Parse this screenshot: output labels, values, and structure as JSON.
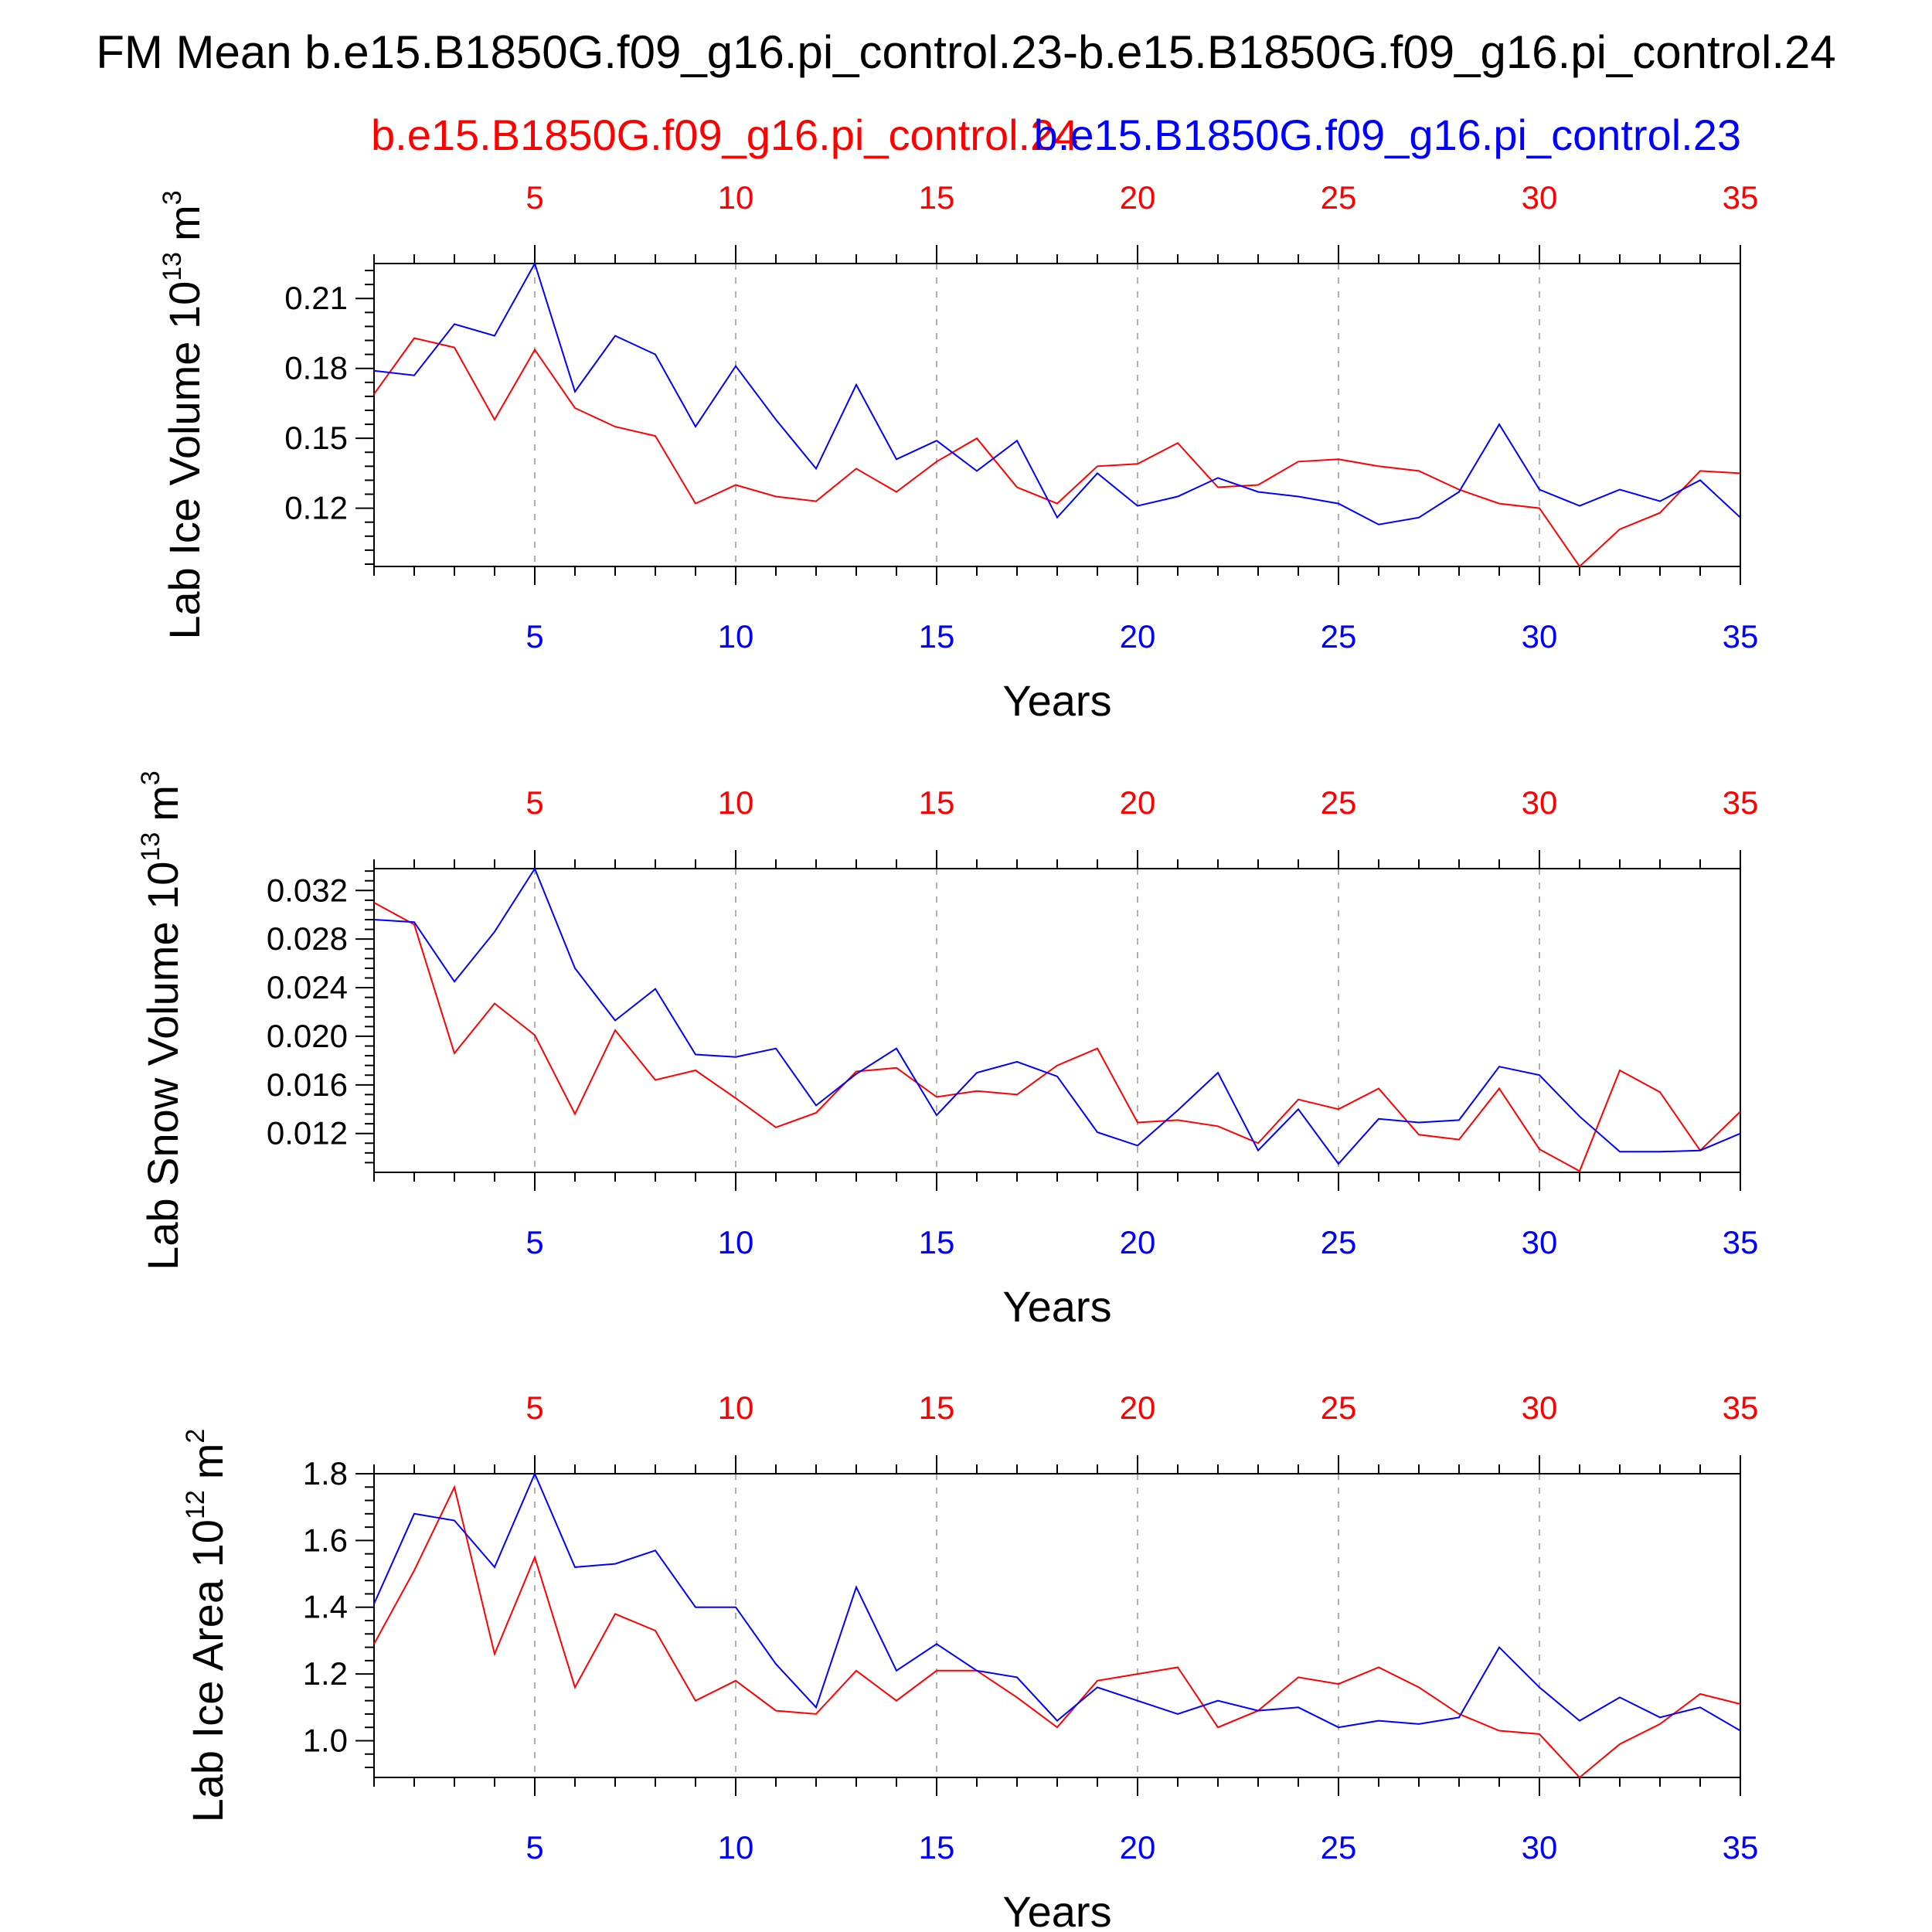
{
  "title": "FM Mean b.e15.B1850G.f09_g16.pi_control.23-b.e15.B1850G.f09_g16.pi_control.24",
  "legend": {
    "red_label": "b.e15.B1850G.f09_g16.pi_control.24",
    "blue_label": "b.e15.B1850G.f09_g16.pi_control.23"
  },
  "colors": {
    "red": "#ff0000",
    "blue": "#0000ff",
    "axis": "#000000",
    "grid": "#b0b0b0"
  },
  "chart_data": [
    {
      "type": "line",
      "ylabel_main": "Lab Ice Volume 10",
      "ylabel_exp": "13",
      "ylabel_unit": "m",
      "ylabel_unit_exp": "3",
      "xlabel": "Years",
      "xlim": [
        1,
        35
      ],
      "ylim": [
        0.095,
        0.225
      ],
      "yticks": [
        "0.12",
        "0.15",
        "0.18",
        "0.21"
      ],
      "ytick_values": [
        0.12,
        0.15,
        0.18,
        0.21
      ],
      "xticks": [
        "5",
        "10",
        "15",
        "20",
        "25",
        "30",
        "35"
      ],
      "xtick_values": [
        5,
        10,
        15,
        20,
        25,
        30,
        35
      ],
      "x": [
        1,
        2,
        3,
        4,
        5,
        6,
        7,
        8,
        9,
        10,
        11,
        12,
        13,
        14,
        15,
        16,
        17,
        18,
        19,
        20,
        21,
        22,
        23,
        24,
        25,
        26,
        27,
        28,
        29,
        30,
        31,
        32,
        33,
        34,
        35
      ],
      "series": [
        {
          "name": "b.e15.B1850G.f09_g16.pi_control.24",
          "color": "red",
          "values": [
            0.169,
            0.193,
            0.189,
            0.158,
            0.188,
            0.163,
            0.155,
            0.151,
            0.122,
            0.13,
            0.125,
            0.123,
            0.137,
            0.127,
            0.14,
            0.15,
            0.129,
            0.122,
            0.138,
            0.139,
            0.148,
            0.129,
            0.13,
            0.14,
            0.141,
            0.138,
            0.136,
            0.128,
            0.122,
            0.12,
            0.095,
            0.111,
            0.118,
            0.136,
            0.135
          ]
        },
        {
          "name": "b.e15.B1850G.f09_g16.pi_control.23",
          "color": "blue",
          "values": [
            0.179,
            0.177,
            0.199,
            0.194,
            0.225,
            0.17,
            0.194,
            0.186,
            0.155,
            0.181,
            0.158,
            0.137,
            0.173,
            0.141,
            0.149,
            0.136,
            0.149,
            0.116,
            0.135,
            0.121,
            0.125,
            0.133,
            0.127,
            0.125,
            0.122,
            0.113,
            0.116,
            0.127,
            0.156,
            0.128,
            0.121,
            0.128,
            0.123,
            0.132,
            0.116
          ]
        }
      ]
    },
    {
      "type": "line",
      "ylabel_main": "Lab Snow Volume 10",
      "ylabel_exp": "13",
      "ylabel_unit": "m",
      "ylabel_unit_exp": "3",
      "xlabel": "Years",
      "xlim": [
        1,
        35
      ],
      "ylim": [
        0.0088,
        0.0338
      ],
      "yticks": [
        "0.012",
        "0.016",
        "0.020",
        "0.024",
        "0.028",
        "0.032"
      ],
      "ytick_values": [
        0.012,
        0.016,
        0.02,
        0.024,
        0.028,
        0.032
      ],
      "xticks": [
        "5",
        "10",
        "15",
        "20",
        "25",
        "30",
        "35"
      ],
      "xtick_values": [
        5,
        10,
        15,
        20,
        25,
        30,
        35
      ],
      "x": [
        1,
        2,
        3,
        4,
        5,
        6,
        7,
        8,
        9,
        10,
        11,
        12,
        13,
        14,
        15,
        16,
        17,
        18,
        19,
        20,
        21,
        22,
        23,
        24,
        25,
        26,
        27,
        28,
        29,
        30,
        31,
        32,
        33,
        34,
        35
      ],
      "series": [
        {
          "name": "b.e15.B1850G.f09_g16.pi_control.24",
          "color": "red",
          "values": [
            0.031,
            0.0292,
            0.0186,
            0.0227,
            0.0201,
            0.0136,
            0.0205,
            0.0164,
            0.0172,
            0.0149,
            0.0125,
            0.0137,
            0.0171,
            0.0174,
            0.015,
            0.0155,
            0.0152,
            0.0176,
            0.019,
            0.0129,
            0.0131,
            0.0126,
            0.0112,
            0.0148,
            0.014,
            0.0157,
            0.0119,
            0.0115,
            0.0157,
            0.0107,
            0.0089,
            0.0172,
            0.0154,
            0.0106,
            0.0138
          ]
        },
        {
          "name": "b.e15.B1850G.f09_g16.pi_control.23",
          "color": "blue",
          "values": [
            0.0296,
            0.0294,
            0.0245,
            0.0286,
            0.0338,
            0.0256,
            0.0213,
            0.0239,
            0.0185,
            0.0183,
            0.019,
            0.0143,
            0.0169,
            0.019,
            0.0135,
            0.017,
            0.0179,
            0.0167,
            0.0121,
            0.011,
            0.0139,
            0.017,
            0.0106,
            0.014,
            0.0095,
            0.0132,
            0.0129,
            0.0131,
            0.0175,
            0.0168,
            0.0134,
            0.0105,
            0.0105,
            0.0106,
            0.012
          ]
        }
      ]
    },
    {
      "type": "line",
      "ylabel_main": "Lab Ice Area 10",
      "ylabel_exp": "12",
      "ylabel_unit": "m",
      "ylabel_unit_exp": "2",
      "xlabel": "Years",
      "xlim": [
        1,
        35
      ],
      "ylim": [
        0.89,
        1.8
      ],
      "yticks": [
        "1.0",
        "1.2",
        "1.4",
        "1.6",
        "1.8"
      ],
      "ytick_values": [
        1.0,
        1.2,
        1.4,
        1.6,
        1.8
      ],
      "xticks": [
        "5",
        "10",
        "15",
        "20",
        "25",
        "30",
        "35"
      ],
      "xtick_values": [
        5,
        10,
        15,
        20,
        25,
        30,
        35
      ],
      "x": [
        1,
        2,
        3,
        4,
        5,
        6,
        7,
        8,
        9,
        10,
        11,
        12,
        13,
        14,
        15,
        16,
        17,
        18,
        19,
        20,
        21,
        22,
        23,
        24,
        25,
        26,
        27,
        28,
        29,
        30,
        31,
        32,
        33,
        34,
        35
      ],
      "series": [
        {
          "name": "b.e15.B1850G.f09_g16.pi_control.24",
          "color": "red",
          "values": [
            1.29,
            1.51,
            1.76,
            1.26,
            1.55,
            1.16,
            1.38,
            1.33,
            1.12,
            1.18,
            1.09,
            1.08,
            1.21,
            1.12,
            1.21,
            1.21,
            1.13,
            1.04,
            1.18,
            1.2,
            1.22,
            1.04,
            1.09,
            1.19,
            1.17,
            1.22,
            1.16,
            1.08,
            1.03,
            1.02,
            0.89,
            0.99,
            1.05,
            1.14,
            1.11
          ]
        },
        {
          "name": "b.e15.B1850G.f09_g16.pi_control.23",
          "color": "blue",
          "values": [
            1.41,
            1.68,
            1.66,
            1.52,
            1.8,
            1.52,
            1.53,
            1.57,
            1.4,
            1.4,
            1.23,
            1.1,
            1.46,
            1.21,
            1.29,
            1.21,
            1.19,
            1.06,
            1.16,
            1.12,
            1.08,
            1.12,
            1.09,
            1.1,
            1.04,
            1.06,
            1.05,
            1.07,
            1.28,
            1.16,
            1.06,
            1.13,
            1.07,
            1.1,
            1.03
          ]
        }
      ]
    }
  ]
}
